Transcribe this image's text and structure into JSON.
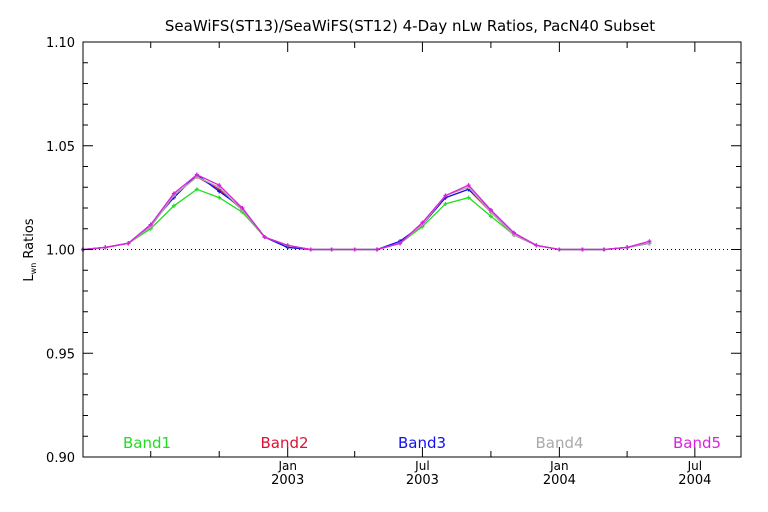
{
  "chart_data": {
    "type": "line",
    "title": "SeaWiFS(ST13)/SeaWiFS(ST12) 4-Day nLw Ratios, PacN40 Subset",
    "ylabel_main": "L",
    "ylabel_sub": "wn",
    "ylabel_rest": " Ratios",
    "xlabel": "",
    "xlim": [
      "2002-04-01",
      "2004-09-01"
    ],
    "ylim": [
      0.9,
      1.1
    ],
    "y_ticks": [
      "0.90",
      "0.95",
      "1.00",
      "1.05",
      "1.10"
    ],
    "x_tick_labels": [
      {
        "date": "2003-01-01",
        "month": "Jan",
        "year": "2003"
      },
      {
        "date": "2003-07-01",
        "month": "Jul",
        "year": "2003"
      },
      {
        "date": "2004-01-01",
        "month": "Jan",
        "year": "2004"
      },
      {
        "date": "2004-07-01",
        "month": "Jul",
        "year": "2004"
      }
    ],
    "reference_line": 1.0,
    "grid": false,
    "legend": "bottom",
    "x": [
      "2002-04-01",
      "2002-05-01",
      "2002-06-01",
      "2002-07-01",
      "2002-08-01",
      "2002-09-01",
      "2002-10-01",
      "2002-11-01",
      "2002-12-01",
      "2003-01-01",
      "2003-02-01",
      "2003-03-01",
      "2003-04-01",
      "2003-05-01",
      "2003-06-01",
      "2003-07-01",
      "2003-08-01",
      "2003-09-01",
      "2003-10-01",
      "2003-11-01",
      "2003-12-01",
      "2004-01-01",
      "2004-02-01",
      "2004-03-01",
      "2004-04-01",
      "2004-05-01",
      "2004-06-01",
      "2004-07-01",
      "2004-08-01",
      "2004-09-01"
    ],
    "series": [
      {
        "name": "Band1",
        "color": "#22dd22",
        "values": [
          1.0,
          1.001,
          1.003,
          1.01,
          1.021,
          1.029,
          1.025,
          1.018,
          1.006,
          1.001,
          1.0,
          1.0,
          1.0,
          1.0,
          1.003,
          1.011,
          1.022,
          1.025,
          1.016,
          1.007,
          1.002,
          1.0,
          1.0,
          1.0,
          1.001,
          1.003,
          null,
          null,
          null,
          null
        ]
      },
      {
        "name": "Band2",
        "color": "#dd1133",
        "values": [
          1.0,
          1.001,
          1.003,
          1.011,
          1.026,
          1.035,
          1.029,
          1.019,
          1.006,
          1.002,
          1.0,
          1.0,
          1.0,
          1.0,
          1.003,
          1.012,
          1.025,
          1.029,
          1.018,
          1.007,
          1.002,
          1.0,
          1.0,
          1.0,
          1.001,
          1.003,
          null,
          null,
          null,
          null
        ]
      },
      {
        "name": "Band3",
        "color": "#1111ee",
        "values": [
          1.0,
          1.001,
          1.003,
          1.012,
          1.025,
          1.036,
          1.028,
          1.02,
          1.006,
          1.001,
          1.0,
          1.0,
          1.0,
          1.0,
          1.004,
          1.012,
          1.025,
          1.029,
          1.019,
          1.008,
          1.002,
          1.0,
          1.0,
          1.0,
          1.001,
          1.003,
          null,
          null,
          null,
          null
        ]
      },
      {
        "name": "Band4",
        "color": "#aaaaaa",
        "values": [
          1.0,
          1.001,
          1.003,
          1.011,
          1.026,
          1.035,
          1.03,
          1.019,
          1.006,
          1.002,
          1.0,
          1.0,
          1.0,
          1.0,
          1.003,
          1.012,
          1.026,
          1.03,
          1.018,
          1.007,
          1.002,
          1.0,
          1.0,
          1.0,
          1.001,
          1.003,
          null,
          null,
          null,
          null
        ]
      },
      {
        "name": "Band5",
        "color": "#dd22dd",
        "values": [
          1.0,
          1.001,
          1.003,
          1.012,
          1.027,
          1.036,
          1.031,
          1.02,
          1.006,
          1.002,
          1.0,
          1.0,
          1.0,
          1.0,
          1.003,
          1.013,
          1.026,
          1.031,
          1.019,
          1.008,
          1.002,
          1.0,
          1.0,
          1.0,
          1.001,
          1.004,
          null,
          null,
          null,
          null
        ]
      }
    ]
  }
}
